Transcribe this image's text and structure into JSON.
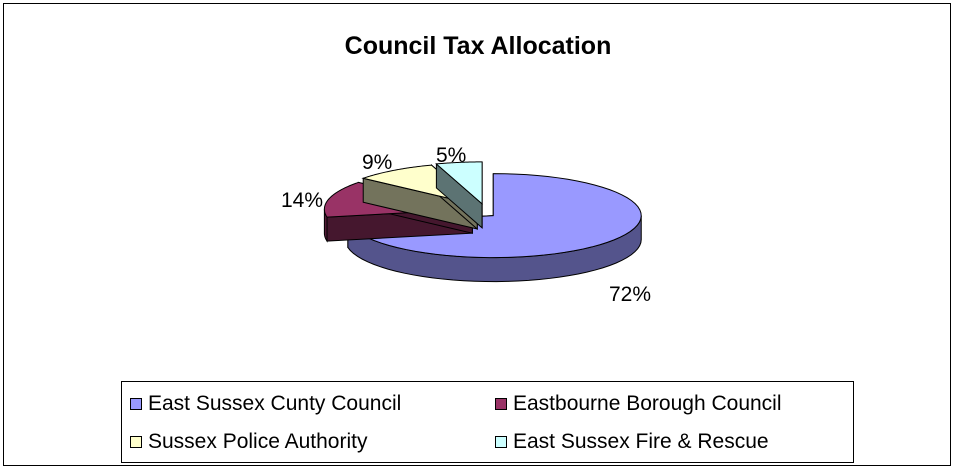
{
  "chart_data": {
    "type": "pie",
    "title": "Council Tax Allocation",
    "categories": [
      "East Sussex Cunty Council",
      "Eastbourne Borough Council",
      "Sussex Police Authority",
      "East Sussex Fire & Rescue"
    ],
    "values": [
      72,
      14,
      9,
      5
    ],
    "labels": [
      "72%",
      "14%",
      "9%",
      "5%"
    ],
    "colors": [
      "#9999ff",
      "#993366",
      "#ffffcc",
      "#ccffff"
    ],
    "legend_position": "bottom"
  }
}
